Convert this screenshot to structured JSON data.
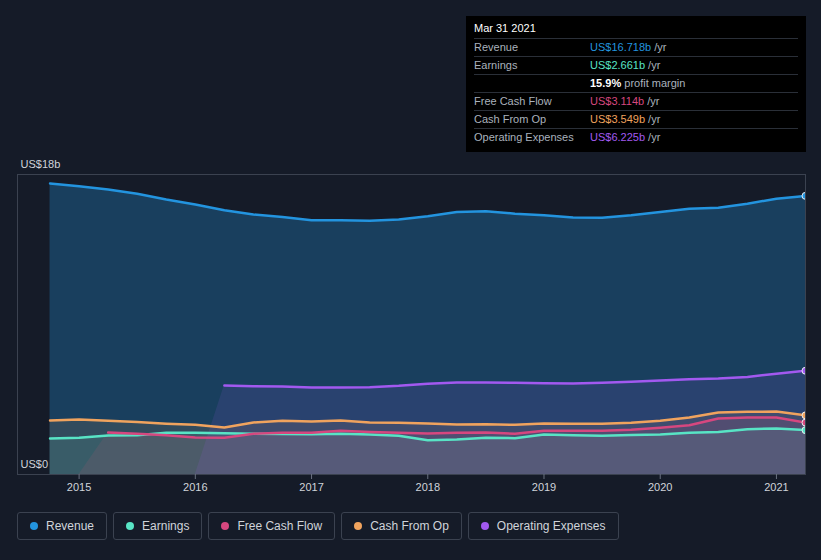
{
  "chart_data": {
    "type": "area",
    "x": [
      2014.75,
      2015,
      2015.25,
      2015.5,
      2015.75,
      2016,
      2016.25,
      2016.5,
      2016.75,
      2017,
      2017.25,
      2017.5,
      2017.75,
      2018,
      2018.25,
      2018.5,
      2018.75,
      2019,
      2019.25,
      2019.5,
      2019.75,
      2020,
      2020.25,
      2020.5,
      2020.75,
      2021,
      2021.25
    ],
    "series": [
      {
        "name": "Revenue",
        "color": "#2394df",
        "values": [
          17.46,
          17.3,
          17.1,
          16.85,
          16.5,
          16.2,
          15.85,
          15.6,
          15.45,
          15.25,
          15.25,
          15.22,
          15.3,
          15.5,
          15.75,
          15.8,
          15.65,
          15.55,
          15.42,
          15.4,
          15.55,
          15.75,
          15.95,
          16.0,
          16.25,
          16.55,
          16.718
        ]
      },
      {
        "name": "Earnings",
        "color": "#58e4c5",
        "values": [
          2.16,
          2.2,
          2.34,
          2.36,
          2.5,
          2.5,
          2.48,
          2.45,
          2.43,
          2.42,
          2.45,
          2.4,
          2.33,
          2.05,
          2.1,
          2.2,
          2.18,
          2.4,
          2.36,
          2.33,
          2.37,
          2.4,
          2.5,
          2.55,
          2.72,
          2.76,
          2.661
        ]
      },
      {
        "name": "Free Cash Flow",
        "color": "#d6477f",
        "values": [
          null,
          null,
          2.52,
          2.45,
          2.35,
          2.22,
          2.2,
          2.45,
          2.5,
          2.5,
          2.62,
          2.55,
          2.5,
          2.46,
          2.5,
          2.52,
          2.45,
          2.62,
          2.62,
          2.62,
          2.68,
          2.8,
          2.95,
          3.36,
          3.42,
          3.42,
          3.114
        ]
      },
      {
        "name": "Cash From Op",
        "color": "#f0a35e",
        "values": [
          3.24,
          3.3,
          3.22,
          3.15,
          3.05,
          2.98,
          2.82,
          3.12,
          3.22,
          3.18,
          3.24,
          3.12,
          3.1,
          3.06,
          3.0,
          3.02,
          2.98,
          3.06,
          3.04,
          3.05,
          3.1,
          3.22,
          3.42,
          3.72,
          3.76,
          3.78,
          3.549
        ]
      },
      {
        "name": "Operating Expenses",
        "color": "#a259f0",
        "values": [
          null,
          null,
          null,
          null,
          null,
          null,
          5.34,
          5.3,
          5.28,
          5.22,
          5.22,
          5.24,
          5.32,
          5.45,
          5.52,
          5.52,
          5.5,
          5.48,
          5.46,
          5.5,
          5.56,
          5.64,
          5.72,
          5.76,
          5.85,
          6.05,
          6.225
        ]
      }
    ],
    "xlim": [
      2014.47,
      2021.25
    ],
    "xticks": [
      2015,
      2016,
      2017,
      2018,
      2019,
      2020,
      2021
    ],
    "ylim": [
      0,
      18
    ],
    "yticks": [
      {
        "value": 0,
        "label": "US$0"
      },
      {
        "value": 18,
        "label": "US$18b"
      }
    ],
    "grid": true,
    "legend": "bottom",
    "tooltip": {
      "title": "Mar 31 2021",
      "rows": [
        {
          "name": "Revenue",
          "value": 16.718,
          "label": "US$16.718b",
          "unit": "/yr"
        },
        {
          "name": "Earnings",
          "value": 2.661,
          "label": "US$2.661b",
          "unit": "/yr"
        },
        {
          "name": "profit margin",
          "value": 15.9,
          "label": "15.9%"
        },
        {
          "name": "Free Cash Flow",
          "value": 3.114,
          "label": "US$3.114b",
          "unit": "/yr"
        },
        {
          "name": "Cash From Op",
          "value": 3.549,
          "label": "US$3.549b",
          "unit": "/yr"
        },
        {
          "name": "Operating Expenses",
          "value": 6.225,
          "label": "US$6.225b",
          "unit": "/yr"
        }
      ]
    }
  }
}
